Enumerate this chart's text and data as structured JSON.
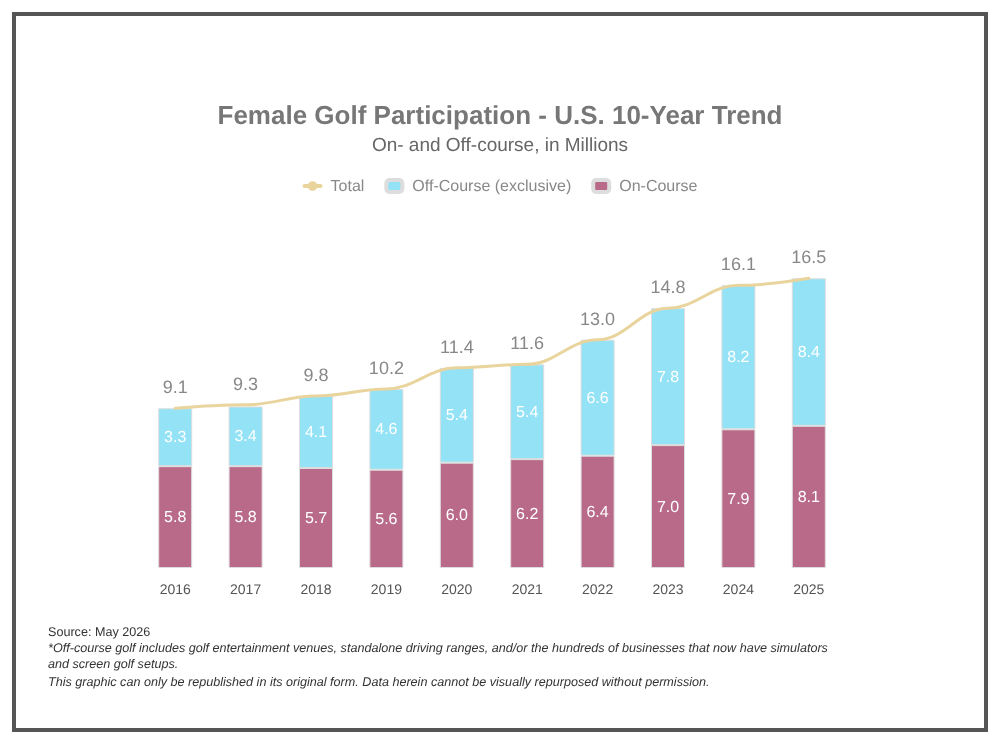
{
  "chart_data": {
    "type": "bar",
    "title": "Female Golf Participation - U.S. 10-Year Trend",
    "subtitle": "On- and Off-course, in Millions",
    "categories": [
      "2016",
      "2017",
      "2018",
      "2019",
      "2020",
      "2021",
      "2022",
      "2023",
      "2024",
      "2025"
    ],
    "stacked": true,
    "grid": false,
    "legend": "top",
    "line_style": "solid",
    "marker": "none",
    "series": [
      {
        "name": "On-Course",
        "color": "#b86a88",
        "values": [
          5.8,
          5.8,
          5.7,
          5.6,
          6.0,
          6.2,
          6.4,
          7.0,
          7.9,
          8.1
        ],
        "value_labels": [
          "5.8",
          "5.8",
          "5.7",
          "5.6",
          "6.0",
          "6.2",
          "6.4",
          "7.0",
          "7.9",
          "8.1"
        ]
      },
      {
        "name": "Off-Course (exclusive)",
        "color": "#93e2f6",
        "values": [
          3.3,
          3.4,
          4.1,
          4.6,
          5.4,
          5.4,
          6.6,
          7.8,
          8.2,
          8.4
        ],
        "value_labels": [
          "3.3",
          "3.4",
          "4.1",
          "4.6",
          "5.4",
          "5.4",
          "6.6",
          "7.8",
          "8.2",
          "8.4"
        ]
      },
      {
        "name": "Total",
        "type": "line",
        "color": "#e8d49c",
        "values": [
          9.1,
          9.3,
          9.8,
          10.2,
          11.4,
          11.6,
          13.0,
          14.8,
          16.1,
          16.5
        ],
        "value_labels": [
          "9.1",
          "9.3",
          "9.8",
          "10.2",
          "11.4",
          "11.6",
          "13.0",
          "14.8",
          "16.1",
          "16.5"
        ]
      }
    ],
    "annotations": [
      "Source: May 2026",
      "*Off-course golf includes golf entertainment venues, standalone driving ranges, and/or the hundreds of businesses that now have simulators and screen golf setups.",
      "This graphic can only be republished in its original form. Data herein cannot be visually repurposed without permission."
    ]
  }
}
